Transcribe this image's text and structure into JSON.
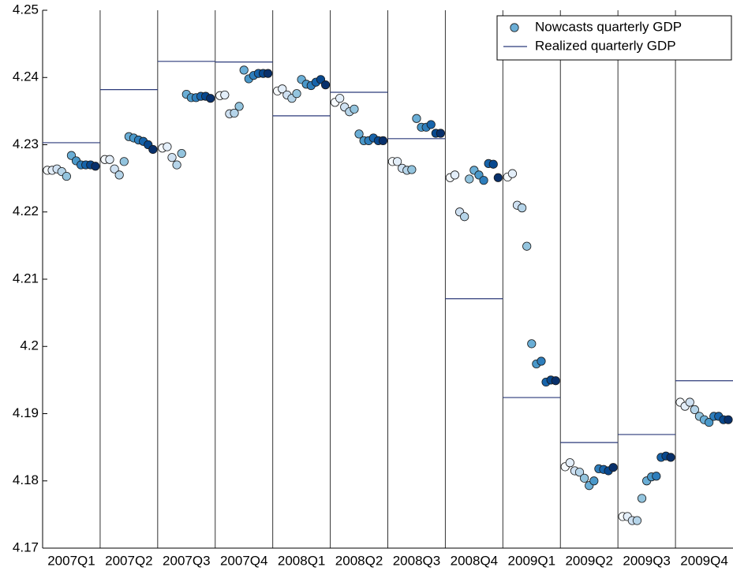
{
  "chart_data": {
    "type": "scatter",
    "categories": [
      "2007Q1",
      "2007Q2",
      "2007Q3",
      "2007Q4",
      "2008Q1",
      "2008Q2",
      "2008Q3",
      "2008Q4",
      "2009Q1",
      "2009Q2",
      "2009Q3",
      "2009Q4"
    ],
    "ylim": [
      4.17,
      4.25
    ],
    "yticks": [
      4.17,
      4.18,
      4.19,
      4.2,
      4.21,
      4.22,
      4.23,
      4.24,
      4.25
    ],
    "legend": "upper right",
    "series": [
      {
        "name": "Nowcasts quarterly GDP",
        "color": "#6baed6",
        "point_colors": [
          "#f7fbff",
          "#e3eef9",
          "#cfe1f2",
          "#b5d4e9",
          "#93c4de",
          "#6aaed6",
          "#4a98c9",
          "#2e7ebc",
          "#1764ab",
          "#08488e",
          "#08306b"
        ],
        "values": [
          [
            4.2262,
            4.2262,
            4.2264,
            4.226,
            4.2253,
            4.2284,
            4.2276,
            4.227,
            4.227,
            4.227,
            4.2268
          ],
          [
            4.2278,
            4.2278,
            4.2264,
            4.2255,
            4.2275,
            4.2312,
            4.231,
            4.2307,
            4.2305,
            4.23,
            4.2293
          ],
          [
            4.2295,
            4.2297,
            4.2281,
            4.227,
            4.2287,
            4.2375,
            4.237,
            4.237,
            4.2372,
            4.2372,
            4.2369
          ],
          [
            4.2373,
            4.2374,
            4.2346,
            4.2347,
            4.2357,
            4.2411,
            4.2398,
            4.2403,
            4.2406,
            4.2406,
            4.2406
          ],
          [
            4.238,
            4.2383,
            4.2374,
            4.2369,
            4.2376,
            4.2397,
            4.239,
            4.2388,
            4.2393,
            4.2397,
            4.2389
          ],
          [
            4.2363,
            4.2369,
            4.2356,
            4.2349,
            4.2353,
            4.2316,
            4.2306,
            4.2306,
            4.231,
            4.2306,
            4.2306
          ],
          [
            4.2275,
            4.2275,
            4.2265,
            4.2262,
            4.2263,
            4.2339,
            4.2326,
            4.2326,
            4.233,
            4.2317,
            4.2317
          ],
          [
            4.2251,
            4.2255,
            4.22,
            4.2193,
            4.2249,
            4.2262,
            4.2255,
            4.2247,
            4.2272,
            4.2271,
            4.2251
          ],
          [
            4.2252,
            4.2257,
            4.221,
            4.2206,
            4.2149,
            4.2004,
            4.1974,
            4.1978,
            4.1947,
            4.195,
            4.1949
          ],
          [
            4.1821,
            4.1827,
            4.1815,
            4.1813,
            4.1804,
            4.1793,
            4.18,
            4.1818,
            4.1817,
            4.1815,
            4.182
          ],
          [
            4.1747,
            4.1747,
            4.1741,
            4.1741,
            4.1774,
            4.18,
            4.1806,
            4.1807,
            4.1835,
            4.1837,
            4.1835
          ],
          [
            4.1917,
            4.1911,
            4.1917,
            4.1906,
            4.1896,
            4.1891,
            4.1887,
            4.1896,
            4.1896,
            4.1891,
            4.1891
          ]
        ]
      },
      {
        "name": "Realized quarterly GDP",
        "color": "#2b3a7a",
        "values": [
          4.2303,
          4.2382,
          4.2424,
          4.2423,
          4.2343,
          4.2378,
          4.2309,
          4.2071,
          4.1924,
          4.1857,
          4.1869,
          4.1949
        ]
      }
    ]
  }
}
